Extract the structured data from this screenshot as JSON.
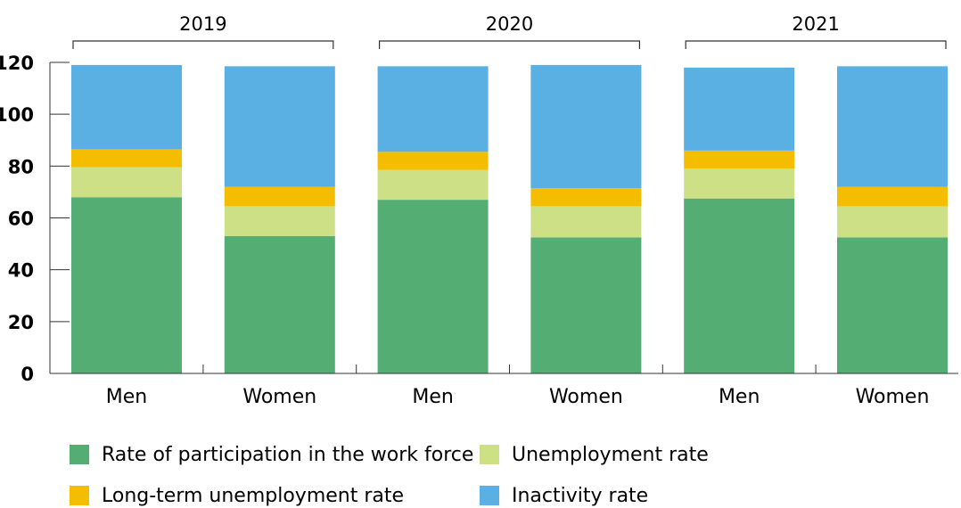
{
  "chart_data": {
    "type": "bar",
    "stacked": true,
    "title": "",
    "xlabel": "",
    "ylabel": "",
    "ylim": [
      0,
      120
    ],
    "y_ticks": [
      "0",
      "20",
      "40",
      "60",
      "80",
      "100",
      "120"
    ],
    "grid": false,
    "legend_position": "bottom",
    "groups": [
      {
        "label": "2019",
        "categories": [
          "Men",
          "Women"
        ]
      },
      {
        "label": "2020",
        "categories": [
          "Men",
          "Women"
        ]
      },
      {
        "label": "2021",
        "categories": [
          "Men",
          "Women"
        ]
      }
    ],
    "categories": [
      "Men",
      "Women",
      "Men",
      "Women",
      "Men",
      "Women"
    ],
    "series": [
      {
        "name": "Rate of participation in the work force",
        "color": "#54ae74",
        "values": [
          68.0,
          53.0,
          67.0,
          52.5,
          67.5,
          52.5
        ]
      },
      {
        "name": "Unemployment rate",
        "color": "#cde085",
        "values": [
          11.5,
          11.5,
          11.5,
          12.0,
          11.5,
          12.0
        ]
      },
      {
        "name": "Long-term unemployment rate",
        "color": "#f5bd00",
        "values": [
          7.0,
          7.5,
          7.0,
          7.0,
          7.0,
          7.5
        ]
      },
      {
        "name": "Inactivity rate",
        "color": "#5aafe3",
        "values": [
          32.5,
          46.5,
          33.0,
          47.5,
          32.0,
          46.5
        ]
      }
    ]
  }
}
